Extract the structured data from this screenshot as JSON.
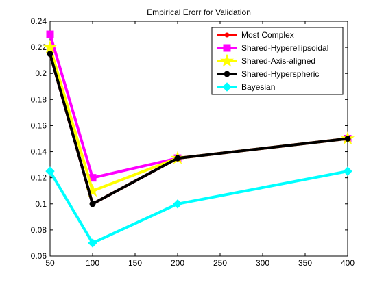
{
  "chart_data": {
    "type": "line",
    "title": "Empirical Erorr for Validation",
    "xlabel": "",
    "ylabel": "",
    "x": [
      50,
      100,
      200,
      400
    ],
    "xlim": [
      50,
      400
    ],
    "ylim": [
      0.06,
      0.24
    ],
    "xticks": [
      "50",
      "100",
      "150",
      "200",
      "250",
      "300",
      "350",
      "400"
    ],
    "yticks": [
      "0.06",
      "0.08",
      "0.1",
      "0.12",
      "0.14",
      "0.16",
      "0.18",
      "0.2",
      "0.22",
      "0.24"
    ],
    "grid": false,
    "legend_position": "top-right",
    "series": [
      {
        "name": "Most Complex",
        "values": [
          0.215,
          0.1,
          0.135,
          0.15
        ],
        "color": "#ff0000",
        "marker": "dot"
      },
      {
        "name": "Shared-Hyperellipsoidal",
        "values": [
          0.23,
          0.12,
          0.135,
          0.15
        ],
        "color": "#ff00ff",
        "marker": "square"
      },
      {
        "name": "Shared-Axis-aligned",
        "values": [
          0.22,
          0.11,
          0.135,
          0.15
        ],
        "color": "#ffff00",
        "marker": "star"
      },
      {
        "name": "Shared-Hyperspheric",
        "values": [
          0.215,
          0.1,
          0.135,
          0.15
        ],
        "color": "#000000",
        "marker": "circle"
      },
      {
        "name": "Bayesian",
        "values": [
          0.125,
          0.07,
          0.1,
          0.125
        ],
        "color": "#00ffff",
        "marker": "diamond"
      }
    ]
  }
}
